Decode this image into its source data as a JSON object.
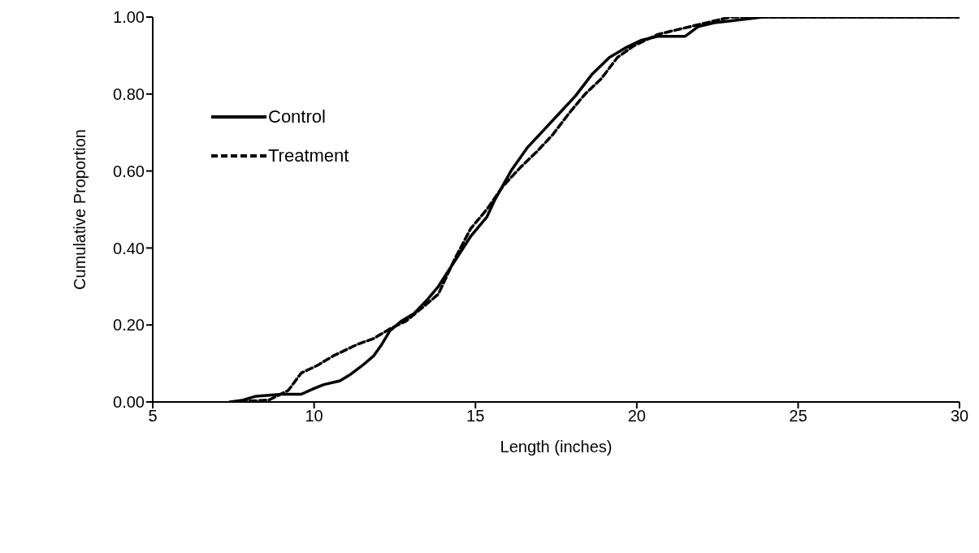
{
  "chart_data": {
    "type": "line",
    "xlabel": "Length (inches)",
    "ylabel": "Cumulative Proportion",
    "xlim": [
      5,
      30
    ],
    "xticks": [
      5,
      10,
      15,
      20,
      25,
      30
    ],
    "ylim": [
      0,
      1
    ],
    "yticks": [
      {
        "value": 0,
        "label": "0.00"
      },
      {
        "value": 0.2,
        "label": "0.20"
      },
      {
        "value": 0.4,
        "label": "0.40"
      },
      {
        "value": 0.6,
        "label": "0.60"
      },
      {
        "value": 0.8,
        "label": "0.80"
      },
      {
        "value": 1,
        "label": "1.00"
      }
    ],
    "grid": false,
    "legend": "top left",
    "marker": "none",
    "series": [
      {
        "name": "Control",
        "color": "#000000",
        "line_style": "solid",
        "x": [
          7.4,
          7.8,
          8.2,
          9.0,
          9.6,
          10.0,
          10.3,
          10.8,
          11.1,
          11.5,
          11.85,
          12.1,
          12.35,
          12.7,
          13.1,
          13.5,
          13.85,
          14.35,
          14.85,
          15.35,
          15.6,
          16.1,
          16.6,
          17.1,
          17.6,
          18.1,
          18.6,
          19.15,
          19.65,
          20.15,
          20.65,
          21.5,
          21.9,
          22.4,
          22.9,
          23.9,
          30
        ],
        "values": [
          0,
          0.005,
          0.015,
          0.02,
          0.02,
          0.035,
          0.045,
          0.055,
          0.07,
          0.095,
          0.12,
          0.15,
          0.185,
          0.21,
          0.23,
          0.265,
          0.3,
          0.365,
          0.43,
          0.48,
          0.525,
          0.6,
          0.66,
          0.705,
          0.75,
          0.795,
          0.85,
          0.895,
          0.92,
          0.94,
          0.95,
          0.95,
          0.975,
          0.985,
          0.99,
          1,
          1
        ]
      },
      {
        "name": "Treatment",
        "color": "#000000",
        "line_style": "dashed",
        "x": [
          7.4,
          8.6,
          9.2,
          9.6,
          10.1,
          10.6,
          11.35,
          11.85,
          12.35,
          12.85,
          13.35,
          13.85,
          14.35,
          14.85,
          15.35,
          15.85,
          16.4,
          16.9,
          17.4,
          17.9,
          18.4,
          18.9,
          19.4,
          19.9,
          20.65,
          21.4,
          22.15,
          22.9,
          30
        ],
        "values": [
          0,
          0.005,
          0.03,
          0.075,
          0.095,
          0.12,
          0.15,
          0.165,
          0.19,
          0.21,
          0.245,
          0.28,
          0.37,
          0.45,
          0.5,
          0.56,
          0.61,
          0.65,
          0.695,
          0.75,
          0.8,
          0.84,
          0.895,
          0.925,
          0.955,
          0.97,
          0.985,
          1,
          1
        ]
      }
    ]
  }
}
